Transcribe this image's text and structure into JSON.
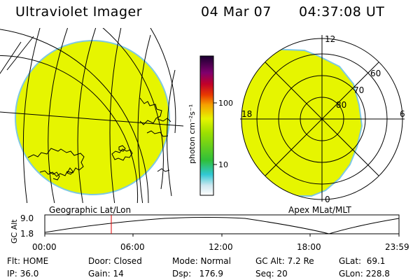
{
  "header": {
    "title": "Ultraviolet Imager",
    "date": "04 Mar 07",
    "time": "04:37:08 UT"
  },
  "colors": {
    "fill": "#e6f500",
    "rim": "#7ec8e3",
    "time_cursor": "#e00000"
  },
  "colorbar": {
    "unit_label": "photon cm⁻²s⁻¹",
    "tick_100": "100",
    "tick_10": "10"
  },
  "left_panel": {
    "label": "Geographic Lat/Lon"
  },
  "right_panel": {
    "label": "Apex MLat/MLT",
    "mlt_12": "12",
    "mlt_18": "18",
    "mlt_6": "6",
    "mlt_0": "0",
    "lat_60": "60",
    "lat_70": "70",
    "lat_80": "80"
  },
  "altitude_plot": {
    "y_label": "GC Alt",
    "y_top": "9.0",
    "y_bottom": "1.8",
    "x_ticks": [
      "00:00",
      "06:00",
      "12:00",
      "18:00",
      "23:59"
    ]
  },
  "info": {
    "flt": "Flt: HOME",
    "door": "Door: Closed",
    "mode": "Mode: Normal",
    "gc_alt": "GC Alt: 7.2 Re",
    "glat": "GLat:  69.1",
    "ip": "IP: 36.0",
    "gain": "Gain: 14",
    "dsp": "Dsp:   176.9",
    "seq": "Seq: 20",
    "glon": "GLon: 228.8"
  }
}
